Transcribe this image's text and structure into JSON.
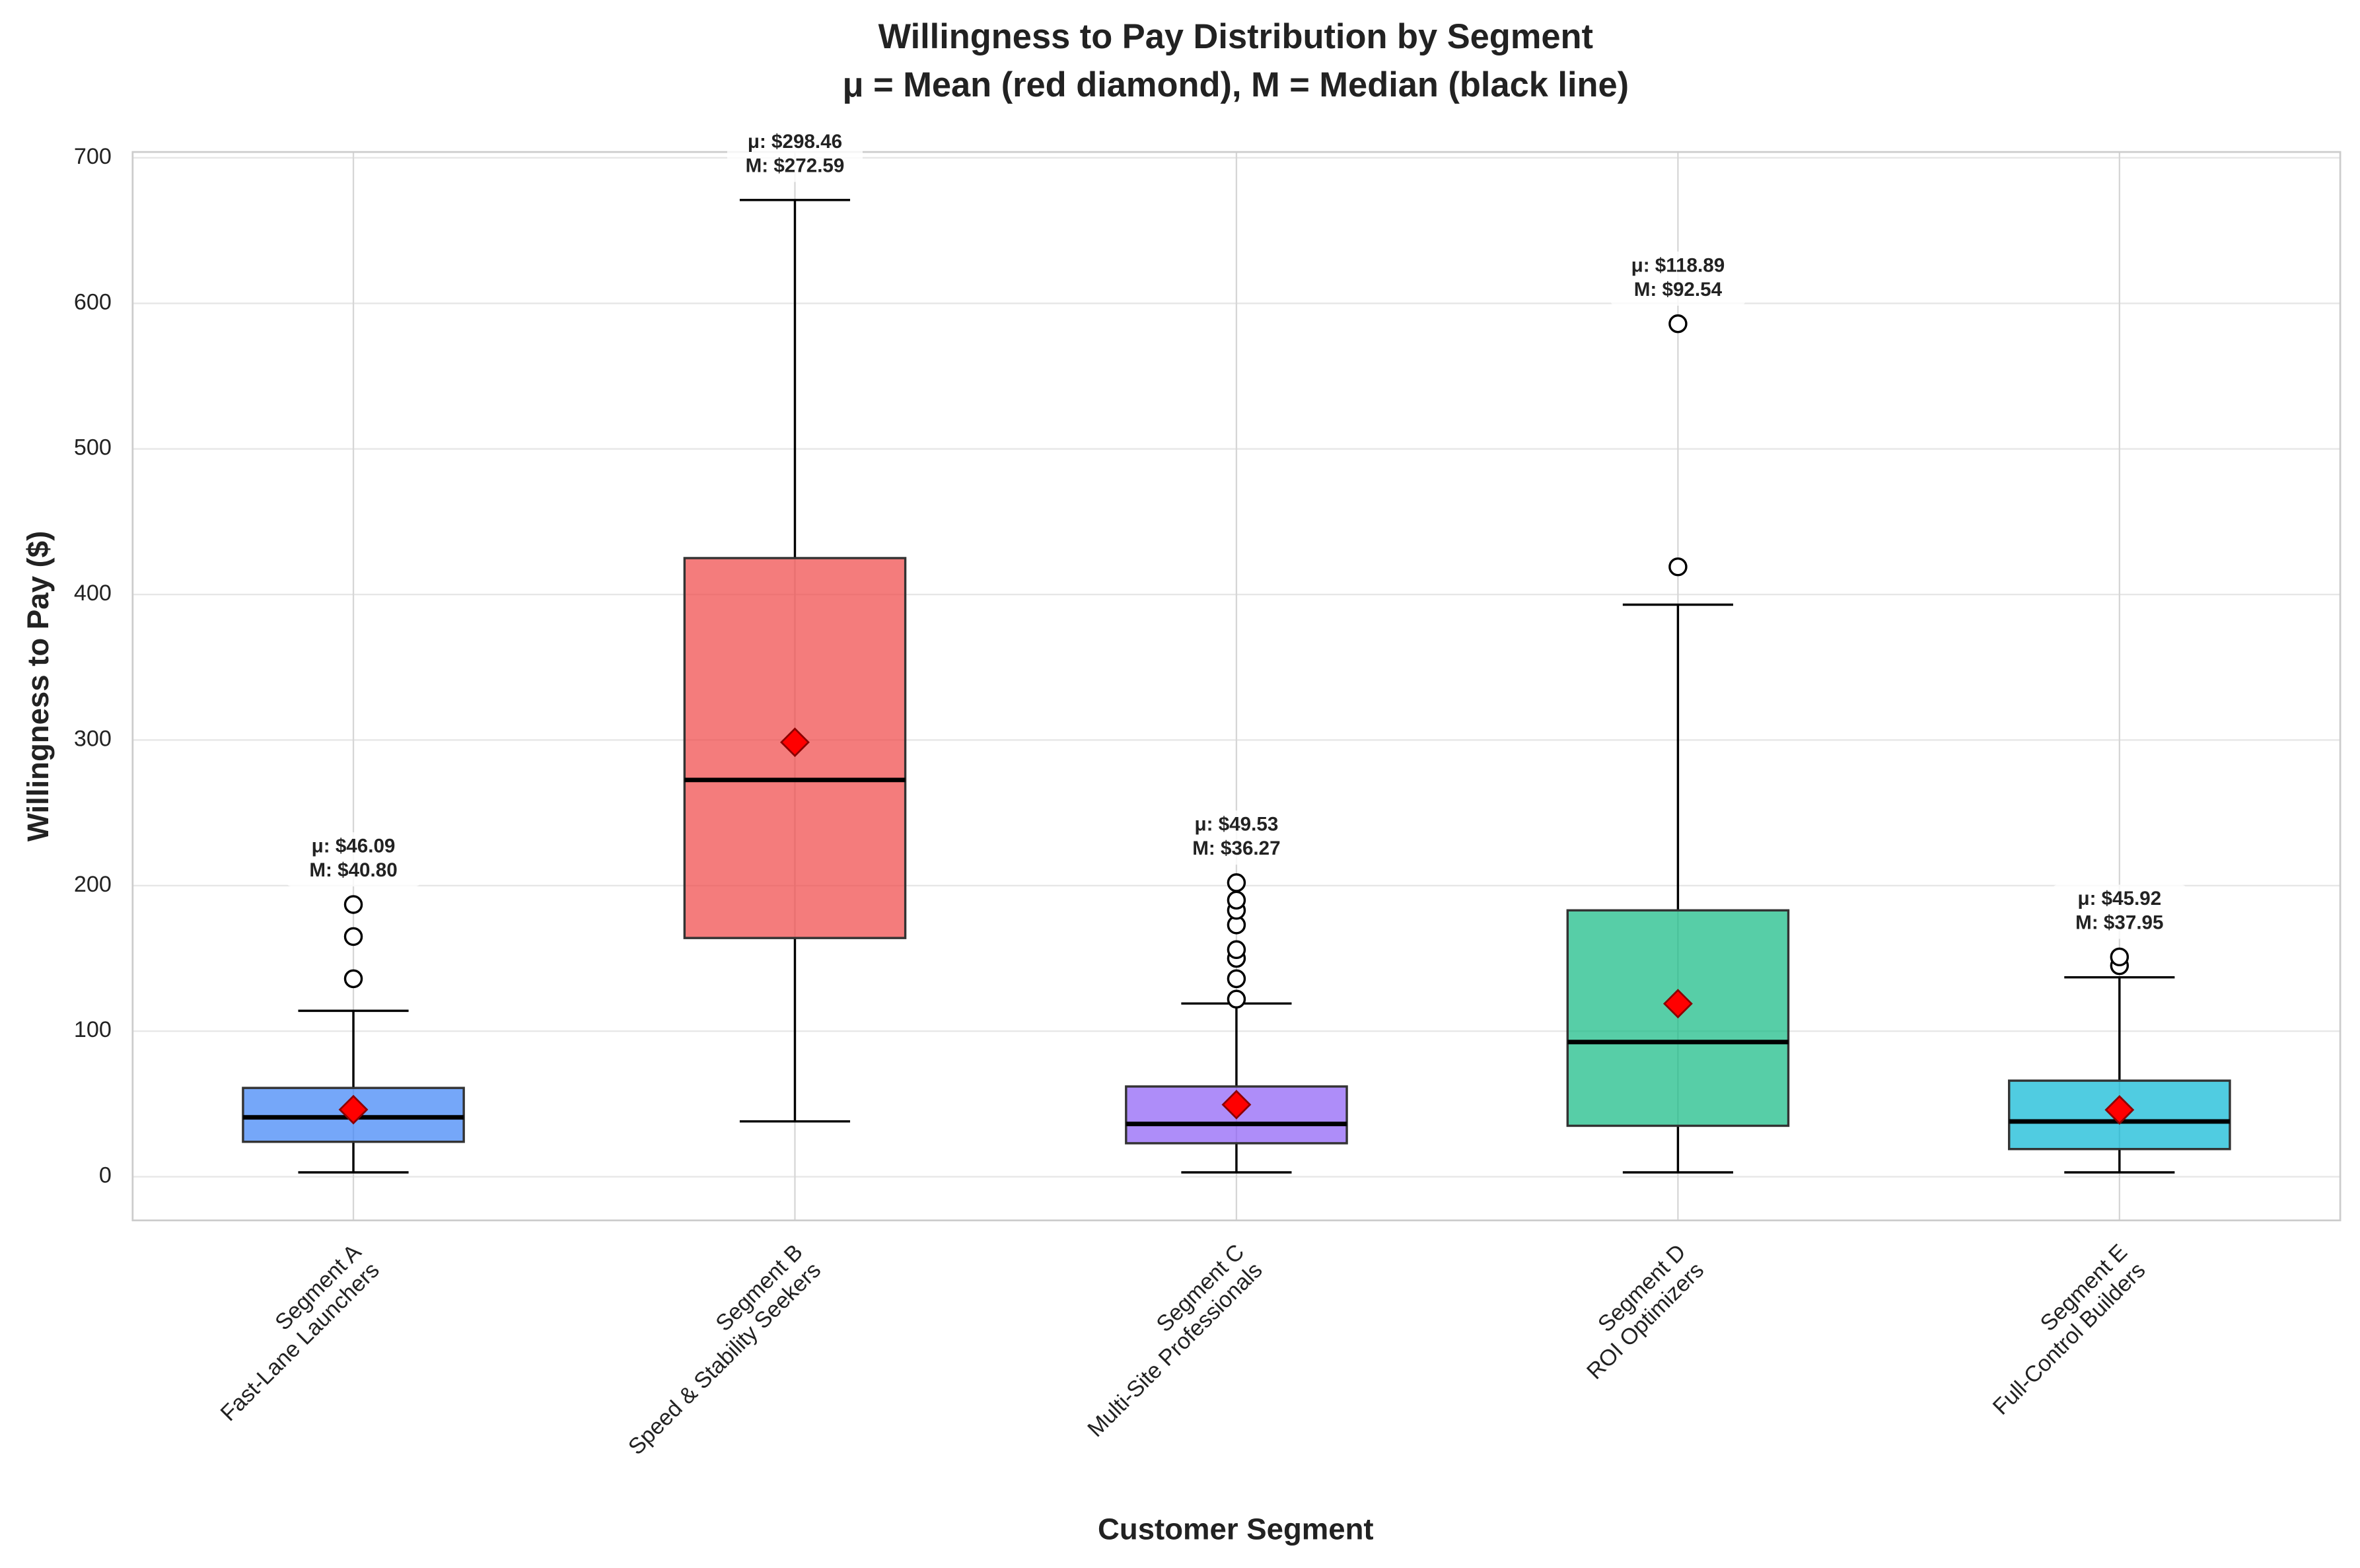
{
  "chart_data": {
    "type": "box",
    "title": "Willingness to Pay Distribution by Segment",
    "subtitle": "μ = Mean (red diamond), M = Median (black line)",
    "x_label": "Customer Segment",
    "y_label": "Willingness to Pay ($)",
    "categories": [
      [
        "Segment A",
        "Fast-Lane Launchers"
      ],
      [
        "Segment B",
        "Speed & Stability Seekers"
      ],
      [
        "Segment C",
        "Multi-Site Professionals"
      ],
      [
        "Segment D",
        "ROI Optimizers"
      ],
      [
        "Segment E",
        "Full-Control Builders"
      ]
    ],
    "colors": [
      "#3b82f6",
      "#ef4444",
      "#8b5cf6",
      "#10b981",
      "#06b6d4"
    ],
    "whisker_low": [
      3,
      38,
      3,
      3,
      3
    ],
    "q1": [
      24,
      164,
      23,
      35,
      19
    ],
    "median": [
      40.8,
      272.59,
      36.27,
      92.54,
      37.95
    ],
    "q3": [
      61,
      425,
      62,
      183,
      66
    ],
    "whisker_high": [
      114,
      671,
      119,
      393,
      137
    ],
    "mean": [
      46.09,
      298.46,
      49.53,
      118.89,
      45.92
    ],
    "mean_labels": [
      "μ: $46.09",
      "μ: $298.46",
      "μ: $49.53",
      "μ: $118.89",
      "μ: $45.92"
    ],
    "median_labels": [
      "M: $40.80",
      "M: $272.59",
      "M: $36.27",
      "M: $92.54",
      "M: $37.95"
    ],
    "outliers": [
      [
        136,
        165,
        187
      ],
      [],
      [
        122,
        136,
        150,
        156,
        173,
        183,
        190,
        202
      ],
      [
        419,
        586
      ],
      [
        145,
        151
      ]
    ],
    "ylim": [
      -30,
      704
    ],
    "yticks": [
      0,
      100,
      200,
      300,
      400,
      500,
      600,
      700
    ],
    "grid": true
  }
}
